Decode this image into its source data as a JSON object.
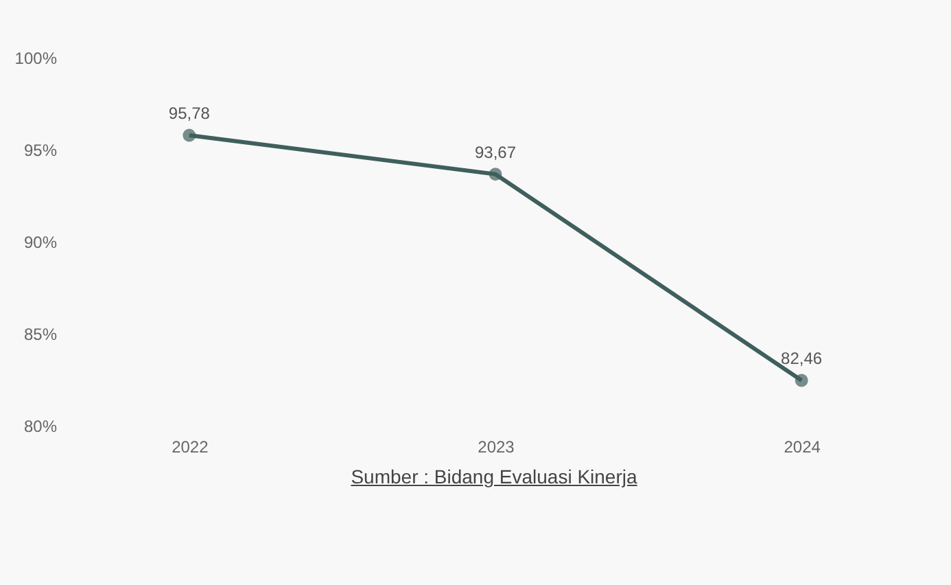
{
  "chart_data": {
    "type": "line",
    "categories": [
      "2022",
      "2023",
      "2024"
    ],
    "series": [
      {
        "color": "#3f5f5c",
        "values": [
          95.78,
          93.67,
          82.46
        ],
        "value_labels": [
          "95,78",
          "93,67",
          "82,46"
        ]
      }
    ],
    "ylim": [
      80,
      100
    ],
    "yticks": [
      {
        "value": 80,
        "label": "80%"
      },
      {
        "value": 85,
        "label": "85%"
      },
      {
        "value": 90,
        "label": "90%"
      },
      {
        "value": 95,
        "label": "95%"
      },
      {
        "value": 100,
        "label": "100%"
      }
    ],
    "marker": "circle",
    "grid": false,
    "annotations": [
      "Sumber : Bidang Evaluasi Kinerja"
    ]
  }
}
